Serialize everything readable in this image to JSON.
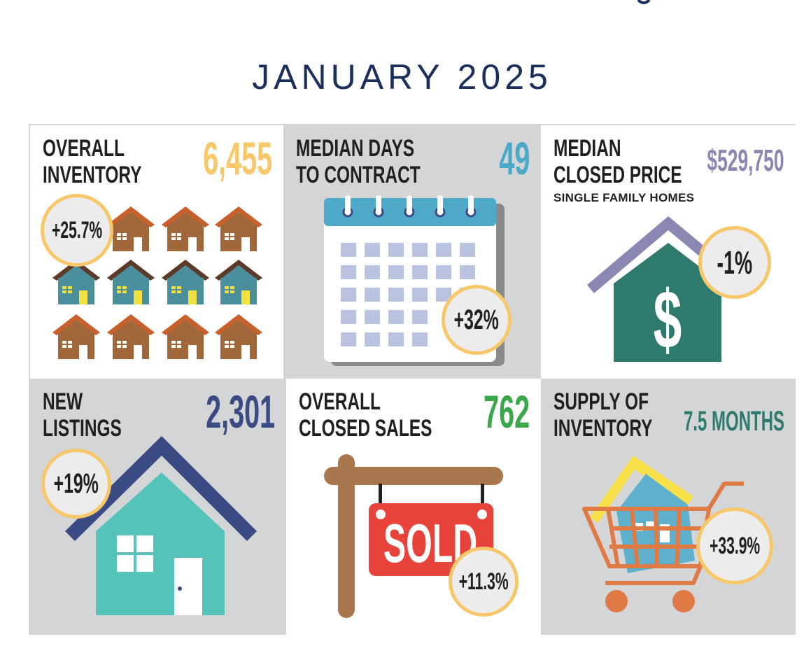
{
  "header": {
    "title": "JANUARY 2025"
  },
  "panels": [
    {
      "id": "inventory",
      "label_line1": "OVERALL",
      "label_line2": "INVENTORY",
      "value": "6,455",
      "value_color": "#f7c76a",
      "change": "+25.7%"
    },
    {
      "id": "days",
      "label_line1": "MEDIAN DAYS",
      "label_line2": "TO CONTRACT",
      "value": "49",
      "value_color": "#4aa8c9",
      "change": "+32%"
    },
    {
      "id": "price",
      "label_line1": "MEDIAN",
      "label_line2": "CLOSED PRICE",
      "subtitle": "SINGLE FAMILY HOMES",
      "value": "$529,750",
      "value_color": "#8a87b3",
      "change": "-1%"
    },
    {
      "id": "listings",
      "label_line1": "NEW",
      "label_line2": "LISTINGS",
      "value": "2,301",
      "value_color": "#3a4a83",
      "change": "+19%"
    },
    {
      "id": "sales",
      "label_line1": "OVERALL",
      "label_line2": "CLOSED SALES",
      "value": "762",
      "value_color": "#3aa84a",
      "change": "+11.3%",
      "sign_text": "SOLD"
    },
    {
      "id": "supply",
      "label_line1": "SUPPLY OF",
      "label_line2": "INVENTORY",
      "value": "7.5 MONTHS",
      "value_color": "#2e7a6d",
      "change": "+33.9%"
    }
  ],
  "colors": {
    "title": "#1c2f5c",
    "panel_gray": "#d4d5d7",
    "badge_ring": "#f7c76a",
    "badge_fill": "#ececec"
  }
}
